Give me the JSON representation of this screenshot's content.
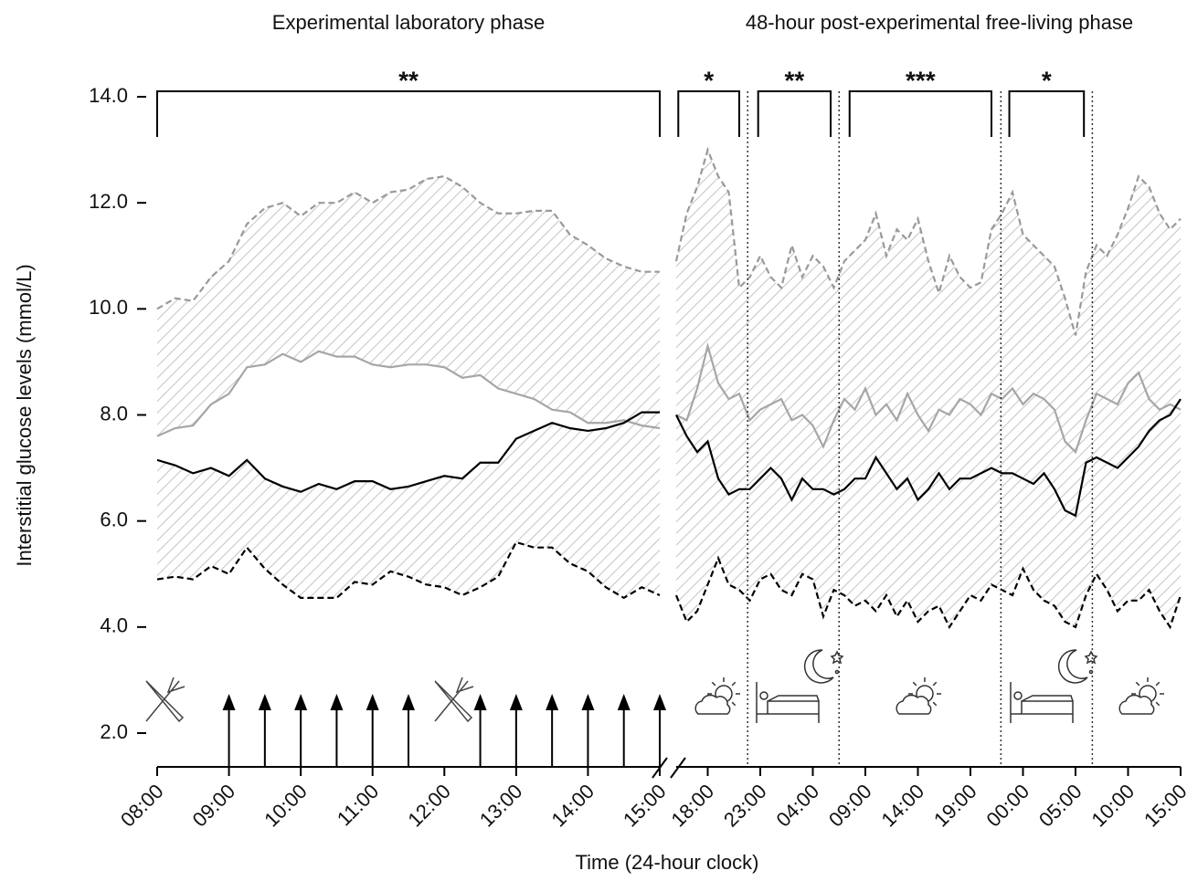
{
  "chart_data": [
    {
      "type": "line",
      "title": "Experimental laboratory phase",
      "ylabel": "Interstitial glucose levels (mmol/L)",
      "xlabel": "Time (24-hour clock)",
      "ylim": [
        2,
        14
      ],
      "yticks": [
        {
          "value": 2,
          "label": "2.0"
        },
        {
          "value": 4,
          "label": "4.0"
        },
        {
          "value": 6,
          "label": "6.0"
        },
        {
          "value": 8,
          "label": "8.0"
        },
        {
          "value": 10,
          "label": "10.0"
        },
        {
          "value": 12,
          "label": "12.0"
        },
        {
          "value": 14,
          "label": "14.0"
        }
      ],
      "xlim": [
        8,
        15
      ],
      "xticks": [
        {
          "value": 8,
          "label": "08:00"
        },
        {
          "value": 9,
          "label": "09:00"
        },
        {
          "value": 10,
          "label": "10:00"
        },
        {
          "value": 11,
          "label": "11:00"
        },
        {
          "value": 12,
          "label": "12:00"
        },
        {
          "value": 13,
          "label": "13:00"
        },
        {
          "value": 14,
          "label": "14:00"
        },
        {
          "value": 15,
          "label": "15:00"
        }
      ],
      "x": [
        8,
        8.25,
        8.5,
        8.75,
        9,
        9.25,
        9.5,
        9.75,
        10,
        10.25,
        10.5,
        10.75,
        11,
        11.25,
        11.5,
        11.75,
        12,
        12.25,
        12.5,
        12.75,
        13,
        13.25,
        13.5,
        13.75,
        14,
        14.25,
        14.5,
        14.75,
        15
      ],
      "series": [
        {
          "color": "#9a9a9a",
          "dashed": true,
          "values": [
            10.0,
            10.2,
            10.15,
            10.6,
            10.9,
            11.6,
            11.9,
            12.0,
            11.75,
            12.0,
            12.0,
            12.2,
            12.0,
            12.2,
            12.25,
            12.45,
            12.5,
            12.3,
            12.0,
            11.8,
            11.8,
            11.85,
            11.85,
            11.4,
            11.2,
            10.95,
            10.8,
            10.7,
            10.7
          ]
        },
        {
          "color": "#a6a6a6",
          "dashed": false,
          "values": [
            7.6,
            7.75,
            7.8,
            8.2,
            8.4,
            8.9,
            8.95,
            9.15,
            9.0,
            9.2,
            9.1,
            9.1,
            8.95,
            8.9,
            8.95,
            8.95,
            8.9,
            8.7,
            8.75,
            8.5,
            8.4,
            8.3,
            8.1,
            8.05,
            7.85,
            7.85,
            7.9,
            7.8,
            7.75
          ]
        },
        {
          "color": "#000000",
          "dashed": false,
          "values": [
            7.15,
            7.05,
            6.9,
            7.0,
            6.85,
            7.15,
            6.8,
            6.65,
            6.55,
            6.7,
            6.6,
            6.75,
            6.75,
            6.6,
            6.65,
            6.75,
            6.85,
            6.8,
            7.1,
            7.1,
            7.55,
            7.7,
            7.85,
            7.75,
            7.7,
            7.75,
            7.85,
            8.05,
            8.05
          ]
        },
        {
          "color": "#000000",
          "dashed": true,
          "values": [
            4.9,
            4.95,
            4.9,
            5.15,
            5.0,
            5.5,
            5.1,
            4.8,
            4.55,
            4.55,
            4.55,
            4.85,
            4.8,
            5.05,
            4.95,
            4.8,
            4.75,
            4.6,
            4.75,
            4.95,
            5.6,
            5.5,
            5.5,
            5.2,
            5.05,
            4.75,
            4.55,
            4.75,
            4.6
          ]
        }
      ],
      "brackets": [
        {
          "text": "**",
          "x": [
            8,
            15
          ]
        }
      ],
      "arrows": [
        9,
        9.5,
        10,
        10.5,
        11,
        11.5,
        12.5,
        13,
        13.5,
        14,
        14.5,
        15
      ]
    },
    {
      "type": "line",
      "title": "48-hour post-experimental free-living phase",
      "ylim": [
        2,
        14
      ],
      "xlim": [
        15,
        63
      ],
      "xticks": [
        {
          "value": 18,
          "label": "18:00"
        },
        {
          "value": 23,
          "label": "23:00"
        },
        {
          "value": 28,
          "label": "04:00"
        },
        {
          "value": 33,
          "label": "09:00"
        },
        {
          "value": 38,
          "label": "14:00"
        },
        {
          "value": 43,
          "label": "19:00"
        },
        {
          "value": 48,
          "label": "00:00"
        },
        {
          "value": 53,
          "label": "05:00"
        },
        {
          "value": 58,
          "label": "10:00"
        },
        {
          "value": 63,
          "label": "15:00"
        }
      ],
      "x": [
        15,
        16,
        17,
        18,
        19,
        20,
        21,
        22,
        23,
        24,
        25,
        26,
        27,
        28,
        29,
        30,
        31,
        32,
        33,
        34,
        35,
        36,
        37,
        38,
        39,
        40,
        41,
        42,
        43,
        44,
        45,
        46,
        47,
        48,
        49,
        50,
        51,
        52,
        53,
        54,
        55,
        56,
        57,
        58,
        59,
        60,
        61,
        62,
        63
      ],
      "series": [
        {
          "color": "#9a9a9a",
          "dashed": true,
          "values": [
            10.9,
            11.8,
            12.3,
            13.0,
            12.5,
            12.2,
            10.4,
            10.6,
            11.0,
            10.6,
            10.4,
            11.2,
            10.6,
            11.0,
            10.8,
            10.4,
            10.9,
            11.1,
            11.3,
            11.8,
            11.0,
            11.5,
            11.3,
            11.7,
            10.9,
            10.3,
            11.0,
            10.6,
            10.4,
            10.5,
            11.5,
            11.8,
            12.2,
            11.4,
            11.2,
            11.0,
            10.8,
            10.2,
            9.5,
            10.7,
            11.2,
            11.0,
            11.4,
            11.9,
            12.5,
            12.3,
            11.8,
            11.5,
            11.7
          ]
        },
        {
          "color": "#a6a6a6",
          "dashed": false,
          "values": [
            8.0,
            7.9,
            8.5,
            9.3,
            8.6,
            8.3,
            8.4,
            7.9,
            8.1,
            8.2,
            8.3,
            7.9,
            8.0,
            7.8,
            7.4,
            7.9,
            8.3,
            8.1,
            8.5,
            8.0,
            8.2,
            7.9,
            8.4,
            8.0,
            7.7,
            8.1,
            8.0,
            8.3,
            8.2,
            8.0,
            8.4,
            8.3,
            8.5,
            8.2,
            8.4,
            8.3,
            8.1,
            7.5,
            7.3,
            7.9,
            8.4,
            8.3,
            8.2,
            8.6,
            8.8,
            8.3,
            8.1,
            8.2,
            8.1
          ]
        },
        {
          "color": "#000000",
          "dashed": false,
          "values": [
            8.0,
            7.6,
            7.3,
            7.5,
            6.8,
            6.5,
            6.6,
            6.6,
            6.8,
            7.0,
            6.8,
            6.4,
            6.8,
            6.6,
            6.6,
            6.5,
            6.6,
            6.8,
            6.8,
            7.2,
            6.9,
            6.6,
            6.8,
            6.4,
            6.6,
            6.9,
            6.6,
            6.8,
            6.8,
            6.9,
            7.0,
            6.9,
            6.9,
            6.8,
            6.7,
            6.9,
            6.6,
            6.2,
            6.1,
            7.1,
            7.2,
            7.1,
            7.0,
            7.2,
            7.4,
            7.7,
            7.9,
            8.0,
            8.3
          ]
        },
        {
          "color": "#000000",
          "dashed": true,
          "values": [
            4.6,
            4.1,
            4.3,
            4.8,
            5.3,
            4.8,
            4.7,
            4.5,
            4.9,
            5.0,
            4.7,
            4.6,
            5.0,
            4.9,
            4.2,
            4.7,
            4.6,
            4.4,
            4.5,
            4.3,
            4.6,
            4.2,
            4.5,
            4.1,
            4.3,
            4.4,
            4.0,
            4.3,
            4.6,
            4.5,
            4.8,
            4.7,
            4.6,
            5.1,
            4.7,
            4.5,
            4.4,
            4.1,
            4.0,
            4.6,
            5.0,
            4.7,
            4.3,
            4.5,
            4.5,
            4.7,
            4.3,
            4.0,
            4.6
          ]
        }
      ],
      "brackets": [
        {
          "text": "*",
          "x": [
            15.2,
            21
          ]
        },
        {
          "text": "**",
          "x": [
            22.8,
            29.7
          ]
        },
        {
          "text": "***",
          "x": [
            31.5,
            45
          ]
        },
        {
          "text": "*",
          "x": [
            46.7,
            53.8
          ]
        }
      ],
      "dividers": [
        21.8,
        30.5,
        45.9,
        54.6
      ]
    }
  ]
}
